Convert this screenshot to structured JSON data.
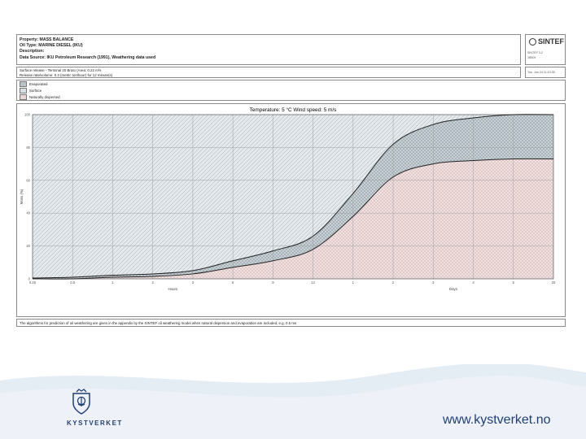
{
  "header": {
    "property": "Property: MASS BALANCE",
    "oil_type": "Oil Type: MARINE DIESEL (IKU)",
    "description": "Description:",
    "data_source": "Data Source: IKU Petroleum Research (1991), Weathering data used"
  },
  "logo": {
    "name": "SINTEF",
    "version": "SINTEF 3.2",
    "id": "1B509"
  },
  "release": {
    "line1": "Surface release - Terminal 20 Bruto (Area: 0.22 m²s",
    "line2": "Release rate/volume: 0.3 (metric ton/hour) for 12 minute(s)",
    "date": "Tue, Jun 24 11:10:35"
  },
  "legend": [
    {
      "label": "Evaporated",
      "color": "#b9c4c6"
    },
    {
      "label": "Surface",
      "color": "#d8dfe2"
    },
    {
      "label": "Naturally dispersed",
      "color": "#ead6d6"
    }
  ],
  "footnote": "The algorithms for prediction of oil weathering are given in the appendix by the SINTEF oil weathering model when natural dispersion and evaporation are included, e.g. 0.5 ms",
  "chart_data": {
    "type": "area",
    "title": "Temperature: 5 °C    Wind speed: 5 m/s",
    "ylabel": "Mass (%)",
    "xlabel_hours": "Hours",
    "xlabel_days": "Days",
    "ylim": [
      0,
      100
    ],
    "yticks": [
      "100",
      "80",
      "60",
      "40",
      "20",
      "0"
    ],
    "xticks_hours": [
      "0.25",
      "0.5",
      "1",
      "2",
      "3",
      "6",
      "9",
      "12"
    ],
    "xticks_days": [
      "1",
      "2",
      "3",
      "4",
      "5",
      "20"
    ],
    "grid": true,
    "series": [
      {
        "name": "Naturally dispersed",
        "x": [
          "0.25 h",
          "0.5 h",
          "1 h",
          "2 h",
          "3 h",
          "6 h",
          "9 h",
          "12 h",
          "1 d",
          "2 d",
          "3 d",
          "4 d",
          "5 d",
          "20 d"
        ],
        "values": [
          0,
          0,
          1,
          1.5,
          3,
          7,
          11,
          18,
          38,
          62,
          70,
          72,
          73,
          73
        ]
      },
      {
        "name": "Evaporated",
        "x": [
          "0.25 h",
          "0.5 h",
          "1 h",
          "2 h",
          "3 h",
          "6 h",
          "9 h",
          "12 h",
          "1 d",
          "2 d",
          "3 d",
          "4 d",
          "5 d",
          "20 d"
        ],
        "values": [
          0.5,
          1,
          1.2,
          1.5,
          2,
          4,
          6,
          8,
          14,
          20,
          24,
          26,
          27,
          27
        ]
      },
      {
        "name": "Surface",
        "x": [
          "0.25 h",
          "0.5 h",
          "1 h",
          "2 h",
          "3 h",
          "6 h",
          "9 h",
          "12 h",
          "1 d",
          "2 d",
          "3 d",
          "4 d",
          "5 d",
          "20 d"
        ],
        "values": [
          99.5,
          99,
          97.8,
          97,
          95,
          89,
          83,
          74,
          48,
          18,
          6,
          2,
          0,
          0
        ]
      }
    ]
  },
  "footer": {
    "brand": "KYSTVERKET",
    "url": "www.kystverket.no",
    "band_color": "#d6e3ef",
    "text_color": "#1f3f73"
  }
}
